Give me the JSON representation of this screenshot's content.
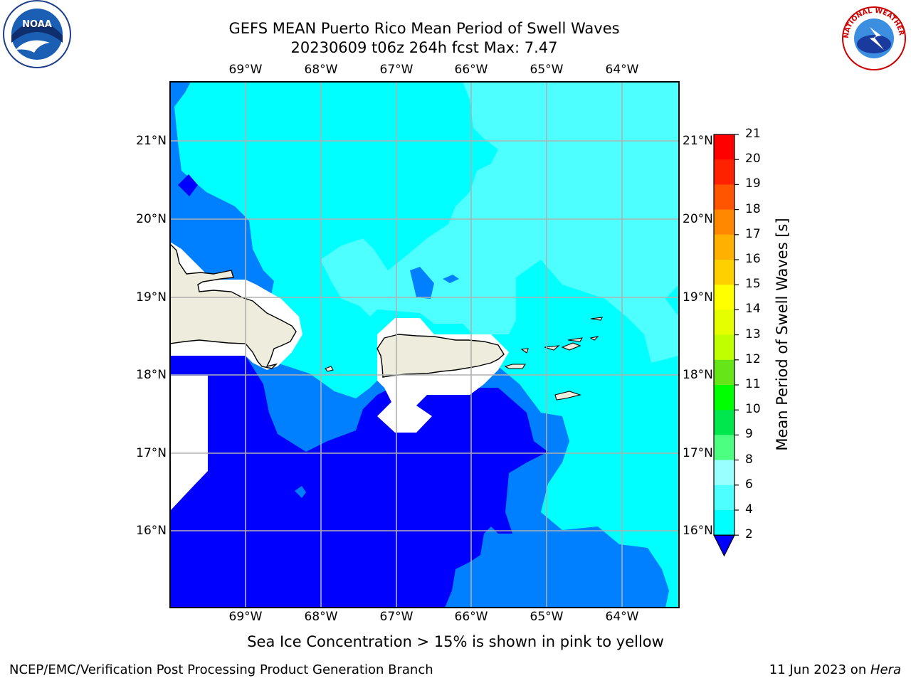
{
  "title": {
    "line1": "GEFS MEAN Puerto Rico Mean Period of Swell Waves",
    "line2": "20230609 t06z 264h fcst   Max: 7.47"
  },
  "map": {
    "lon_labels": [
      "69°W",
      "68°W",
      "67°W",
      "66°W",
      "65°W",
      "64°W"
    ],
    "lat_labels": [
      "21°N",
      "20°N",
      "19°N",
      "18°N",
      "17°N",
      "16°N"
    ],
    "land_color": "#eeecdc",
    "coastline_color": "#000000"
  },
  "colorbar": {
    "title": "Mean Period of Swell Waves [s]",
    "ticks": [
      "2",
      "4",
      "6",
      "8",
      "9",
      "10",
      "11",
      "12",
      "13",
      "14",
      "15",
      "16",
      "17",
      "18",
      "19",
      "20",
      "21"
    ],
    "colors": [
      "#0000ff",
      "#0080ff",
      "#00ffff",
      "#4dffff",
      "#99ffff",
      "#4dff80",
      "#00e64d",
      "#00ff00",
      "#66e619",
      "#c0ff00",
      "#e6ff00",
      "#ffff00",
      "#ffd000",
      "#ffb000",
      "#ff8800",
      "#ff5500",
      "#ff2200",
      "#ff0000"
    ]
  },
  "ice_note": "Sea Ice Concentration > 15% is shown in pink to yellow",
  "footer": {
    "left": "NCEP/EMC/Verification Post Processing Product Generation Branch",
    "right_date": "11 Jun 2023 on ",
    "right_host": "Hera"
  },
  "logos": {
    "noaa": "NOAA",
    "nws": "NATIONAL WEATHER SERVICE"
  }
}
